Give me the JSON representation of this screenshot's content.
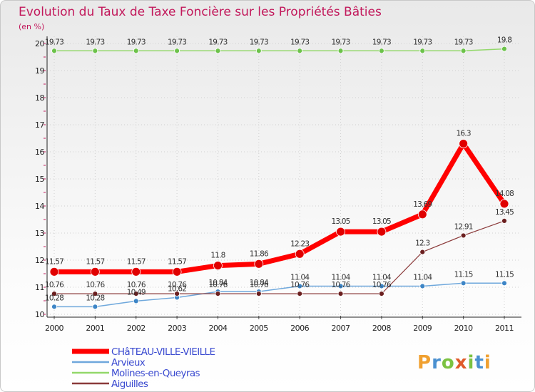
{
  "chart_data": {
    "type": "line",
    "title": "Evolution du Taux de Taxe Foncière sur les Propriétés Bâties",
    "ylabel": "(en %)",
    "xlabel": "",
    "ylim": [
      10,
      20
    ],
    "yticks": [
      10,
      11,
      12,
      13,
      14,
      15,
      16,
      17,
      18,
      19,
      20
    ],
    "categories": [
      "2000",
      "2001",
      "2002",
      "2003",
      "2004",
      "2005",
      "2006",
      "2007",
      "2008",
      "2009",
      "2010",
      "2011"
    ],
    "series": [
      {
        "name": "CHâTEAU-VILLE-VIEILLE",
        "color": "#ff0000",
        "point_color": "#e00000",
        "width": 7,
        "radius": 6,
        "values": [
          11.57,
          11.57,
          11.57,
          11.57,
          11.8,
          11.86,
          12.23,
          13.05,
          13.05,
          13.69,
          16.3,
          14.08
        ],
        "labels": [
          "11.57",
          "11.57",
          "11.57",
          "11.57",
          "11.8",
          "11.86",
          "12.23",
          "13.05",
          "13.05",
          "13.69",
          "16.3",
          "14.08"
        ]
      },
      {
        "name": "Arvieux",
        "color": "#6fa8dc",
        "point_color": "#3d85c6",
        "width": 1.5,
        "radius": 3.5,
        "values": [
          10.28,
          10.28,
          10.49,
          10.62,
          10.84,
          10.84,
          11.04,
          11.04,
          11.04,
          11.04,
          11.15,
          11.15
        ],
        "labels": [
          "10.28",
          "10.28",
          "10.49",
          "10.62",
          "10.84",
          "10.84",
          "11.04",
          "11.04",
          "11.04",
          "11.04",
          "11.15",
          "11.15"
        ]
      },
      {
        "name": "Molines-en-Queyras",
        "color": "#93d86b",
        "point_color": "#6cc24a",
        "width": 1.5,
        "radius": 3.5,
        "values": [
          19.73,
          19.73,
          19.73,
          19.73,
          19.73,
          19.73,
          19.73,
          19.73,
          19.73,
          19.73,
          19.73,
          19.8
        ],
        "labels": [
          "19.73",
          "19.73",
          "19.73",
          "19.73",
          "19.73",
          "19.73",
          "19.73",
          "19.73",
          "19.73",
          "19.73",
          "19.73",
          "19.8"
        ]
      },
      {
        "name": "Aiguilles",
        "color": "#8b3a3a",
        "point_color": "#6b1f1f",
        "width": 1.2,
        "radius": 3.5,
        "values": [
          10.76,
          10.76,
          10.76,
          10.76,
          10.76,
          10.76,
          10.76,
          10.76,
          10.76,
          12.3,
          12.91,
          13.45
        ],
        "labels": [
          "10.76",
          "10.76",
          "10.76",
          "10.76",
          "10.76",
          "10.76",
          "10.76",
          "10.76",
          "10.76",
          "12.3",
          "12.91",
          "13.45"
        ]
      }
    ],
    "legend_position": "bottom-left"
  },
  "watermark": {
    "letters": [
      "P",
      "r",
      "o",
      "x",
      "i",
      "t",
      "i"
    ],
    "colors": [
      "#f0a030",
      "#4a90d0",
      "#7cc242",
      "#e05a2a",
      "#7cc242",
      "#4a90d0",
      "#f0a030"
    ]
  }
}
